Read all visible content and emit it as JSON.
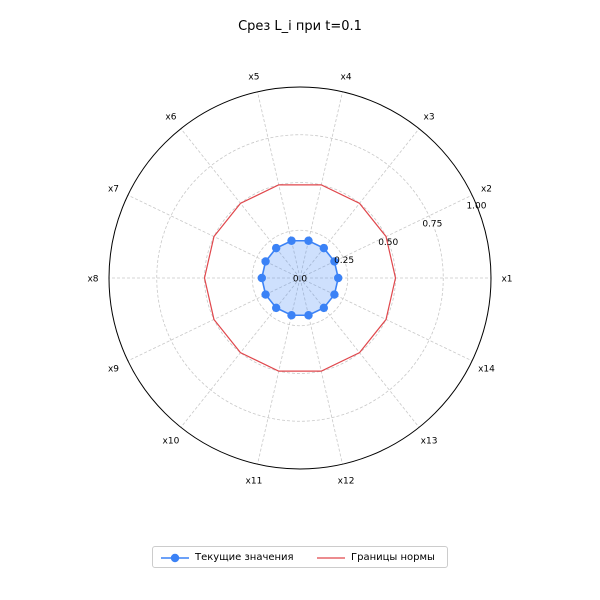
{
  "chart_data": {
    "type": "radar",
    "title": "Срез L_i при t=0.1",
    "categories": [
      "x1",
      "x2",
      "x3",
      "x4",
      "x5",
      "x6",
      "x7",
      "x8",
      "x9",
      "x10",
      "x11",
      "x12",
      "x13",
      "x14"
    ],
    "radial_ticks": [
      0.0,
      0.25,
      0.5,
      0.75,
      1.0
    ],
    "radial_tick_labels": [
      "0.0",
      "0.25",
      "0.50",
      "0.75",
      "1.00"
    ],
    "rlim": [
      0,
      1
    ],
    "grid": true,
    "legend_position": "bottom",
    "series": [
      {
        "name": "Текущие значения",
        "style": "line-markers-filled",
        "color": "#3b82f6",
        "values": [
          0.2,
          0.2,
          0.2,
          0.2,
          0.2,
          0.2,
          0.2,
          0.2,
          0.2,
          0.2,
          0.2,
          0.2,
          0.2,
          0.2
        ]
      },
      {
        "name": "Границы нормы",
        "style": "line",
        "color": "#e0474c",
        "values": [
          0.5,
          0.5,
          0.5,
          0.5,
          0.5,
          0.5,
          0.5,
          0.5,
          0.5,
          0.5,
          0.5,
          0.5,
          0.5,
          0.5
        ]
      }
    ]
  }
}
